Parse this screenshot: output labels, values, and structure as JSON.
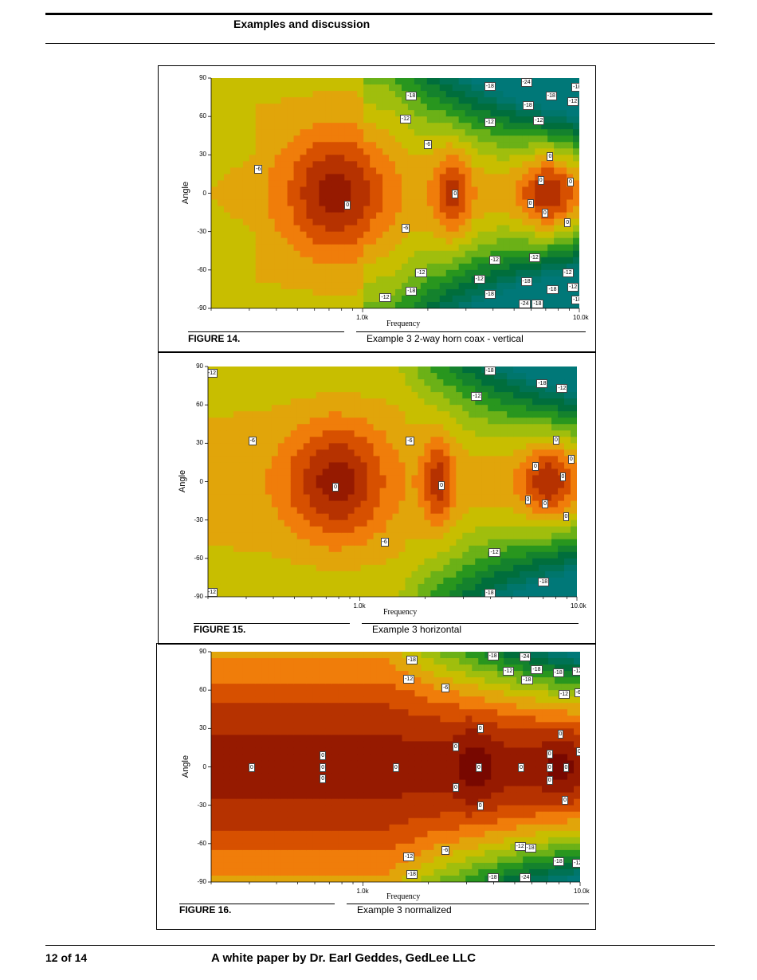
{
  "header": {
    "section_title": "Examples and discussion"
  },
  "footer": {
    "page_number": "12 of 14",
    "text": "A white paper by Dr. Earl Geddes, GedLee LLC"
  },
  "figures": [
    {
      "label": "FIGURE 14.",
      "caption": "Example 3 2-way horn coax - vertical"
    },
    {
      "label": "FIGURE 15.",
      "caption": "Example 3 horizontal"
    },
    {
      "label": "FIGURE 16.",
      "caption": "Example 3 normalized"
    }
  ],
  "chart_data": [
    {
      "type": "heatmap",
      "title": "",
      "xlabel": "Frequency",
      "ylabel": "Angle",
      "x_scale": "log",
      "x_ticks": [
        "1.0k",
        "10.0k"
      ],
      "y_ticks": [
        "90",
        "60",
        "30",
        "0",
        "-30",
        "-60",
        "-90"
      ],
      "ylim": [
        -90,
        90
      ],
      "contour_labels": [
        {
          "text": "-18",
          "f": 1650,
          "a": 76
        },
        {
          "text": "-18",
          "f": 3800,
          "a": 84
        },
        {
          "text": "-24",
          "f": 5600,
          "a": 87
        },
        {
          "text": "-18",
          "f": 5700,
          "a": 69
        },
        {
          "text": "-18",
          "f": 7300,
          "a": 76
        },
        {
          "text": "-18",
          "f": 9600,
          "a": 83
        },
        {
          "text": "-12",
          "f": 9200,
          "a": 72
        },
        {
          "text": "-12",
          "f": 1550,
          "a": 58
        },
        {
          "text": "-12",
          "f": 3800,
          "a": 56
        },
        {
          "text": "-12",
          "f": 6400,
          "a": 57
        },
        {
          "text": "-6",
          "f": 2000,
          "a": 38
        },
        {
          "text": "-6",
          "f": 330,
          "a": 19
        },
        {
          "text": "0",
          "f": 9200,
          "a": 9
        },
        {
          "text": "0",
          "f": 7400,
          "a": 29
        },
        {
          "text": "0",
          "f": 6700,
          "a": 10
        },
        {
          "text": "0",
          "f": 2700,
          "a": 0
        },
        {
          "text": "0",
          "f": 6000,
          "a": -8
        },
        {
          "text": "0",
          "f": 7000,
          "a": -15
        },
        {
          "text": "0",
          "f": 8900,
          "a": -23
        },
        {
          "text": "0",
          "f": 860,
          "a": -9
        },
        {
          "text": "-6",
          "f": 1580,
          "a": -27
        },
        {
          "text": "-12",
          "f": 4000,
          "a": -52
        },
        {
          "text": "-12",
          "f": 6100,
          "a": -50
        },
        {
          "text": "-12",
          "f": 1830,
          "a": -62
        },
        {
          "text": "-12",
          "f": 3400,
          "a": -67
        },
        {
          "text": "-12",
          "f": 8700,
          "a": -62
        },
        {
          "text": "-12",
          "f": 9200,
          "a": -73
        },
        {
          "text": "-18",
          "f": 1650,
          "a": -76
        },
        {
          "text": "-18",
          "f": 3800,
          "a": -79
        },
        {
          "text": "-18",
          "f": 5600,
          "a": -69
        },
        {
          "text": "-18",
          "f": 7400,
          "a": -75
        },
        {
          "text": "-24",
          "f": 5500,
          "a": -86
        },
        {
          "text": "-18",
          "f": 6300,
          "a": -86
        },
        {
          "text": "-18",
          "f": 9600,
          "a": -83
        },
        {
          "text": "-12",
          "f": 1250,
          "a": -81
        }
      ]
    },
    {
      "type": "heatmap",
      "title": "",
      "xlabel": "Frequency",
      "ylabel": "Angle",
      "x_scale": "log",
      "x_ticks": [
        "1.0k",
        "10.0k"
      ],
      "y_ticks": [
        "90",
        "60",
        "30",
        "0",
        "-30",
        "-60",
        "-90"
      ],
      "ylim": [
        -90,
        90
      ],
      "contour_labels": [
        {
          "text": "-12",
          "f": 205,
          "a": 85
        },
        {
          "text": "-18",
          "f": 3900,
          "a": 87
        },
        {
          "text": "-18",
          "f": 6800,
          "a": 77
        },
        {
          "text": "-12",
          "f": 8400,
          "a": 73
        },
        {
          "text": "-12",
          "f": 3400,
          "a": 67
        },
        {
          "text": "-6",
          "f": 320,
          "a": 32
        },
        {
          "text": "-6",
          "f": 1700,
          "a": 32
        },
        {
          "text": "0",
          "f": 8100,
          "a": 33
        },
        {
          "text": "0",
          "f": 9500,
          "a": 18
        },
        {
          "text": "0",
          "f": 6500,
          "a": 12
        },
        {
          "text": "0",
          "f": 8700,
          "a": 4
        },
        {
          "text": "0",
          "f": 780,
          "a": -4
        },
        {
          "text": "0",
          "f": 2400,
          "a": -3
        },
        {
          "text": "0",
          "f": 6000,
          "a": -14
        },
        {
          "text": "0",
          "f": 7200,
          "a": -17
        },
        {
          "text": "0",
          "f": 9000,
          "a": -27
        },
        {
          "text": "-6",
          "f": 1300,
          "a": -47
        },
        {
          "text": "-12",
          "f": 4100,
          "a": -55
        },
        {
          "text": "-18",
          "f": 6900,
          "a": -78
        },
        {
          "text": "-18",
          "f": 3900,
          "a": -87
        },
        {
          "text": "-12",
          "f": 205,
          "a": -86
        }
      ]
    },
    {
      "type": "heatmap",
      "title": "",
      "xlabel": "Frequency",
      "ylabel": "Angle",
      "x_scale": "log",
      "x_ticks": [
        "1.0k",
        "10.0k"
      ],
      "y_ticks": [
        "90",
        "60",
        "30",
        "0",
        "-30",
        "-60",
        "-90"
      ],
      "ylim": [
        -90,
        90
      ],
      "contour_labels": [
        {
          "text": "-18",
          "f": 1650,
          "a": 84
        },
        {
          "text": "-18",
          "f": 3900,
          "a": 87
        },
        {
          "text": "-24",
          "f": 5500,
          "a": 86
        },
        {
          "text": "-12",
          "f": 4600,
          "a": 75
        },
        {
          "text": "-18",
          "f": 5600,
          "a": 68
        },
        {
          "text": "-18",
          "f": 6200,
          "a": 76
        },
        {
          "text": "-18",
          "f": 7800,
          "a": 74
        },
        {
          "text": "-12",
          "f": 9600,
          "a": 75
        },
        {
          "text": "-12",
          "f": 1600,
          "a": 69
        },
        {
          "text": "-6",
          "f": 2400,
          "a": 62
        },
        {
          "text": "-12",
          "f": 8300,
          "a": 57
        },
        {
          "text": "-6",
          "f": 9800,
          "a": 58
        },
        {
          "text": "0",
          "f": 3500,
          "a": 30
        },
        {
          "text": "0",
          "f": 8200,
          "a": 26
        },
        {
          "text": "0",
          "f": 2700,
          "a": 16
        },
        {
          "text": "0",
          "f": 7300,
          "a": 10
        },
        {
          "text": "0",
          "f": 10000,
          "a": 12
        },
        {
          "text": "0",
          "f": 660,
          "a": 9
        },
        {
          "text": "0",
          "f": 310,
          "a": 0
        },
        {
          "text": "0",
          "f": 660,
          "a": 0
        },
        {
          "text": "0",
          "f": 1430,
          "a": 0
        },
        {
          "text": "0",
          "f": 3450,
          "a": 0
        },
        {
          "text": "0",
          "f": 5400,
          "a": 0
        },
        {
          "text": "0",
          "f": 7300,
          "a": 0
        },
        {
          "text": "0",
          "f": 8700,
          "a": 0
        },
        {
          "text": "0",
          "f": 660,
          "a": -9
        },
        {
          "text": "0",
          "f": 7300,
          "a": -10
        },
        {
          "text": "0",
          "f": 2700,
          "a": -16
        },
        {
          "text": "0",
          "f": 8600,
          "a": -26
        },
        {
          "text": "0",
          "f": 3500,
          "a": -30
        },
        {
          "text": "-12",
          "f": 1600,
          "a": -70
        },
        {
          "text": "-6",
          "f": 2400,
          "a": -65
        },
        {
          "text": "-12",
          "f": 5200,
          "a": -62
        },
        {
          "text": "-18",
          "f": 5800,
          "a": -63
        },
        {
          "text": "-18",
          "f": 7800,
          "a": -74
        },
        {
          "text": "-12",
          "f": 9600,
          "a": -75
        },
        {
          "text": "-18",
          "f": 1650,
          "a": -84
        },
        {
          "text": "-18",
          "f": 3900,
          "a": -86
        },
        {
          "text": "-24",
          "f": 5500,
          "a": -86
        }
      ]
    }
  ]
}
